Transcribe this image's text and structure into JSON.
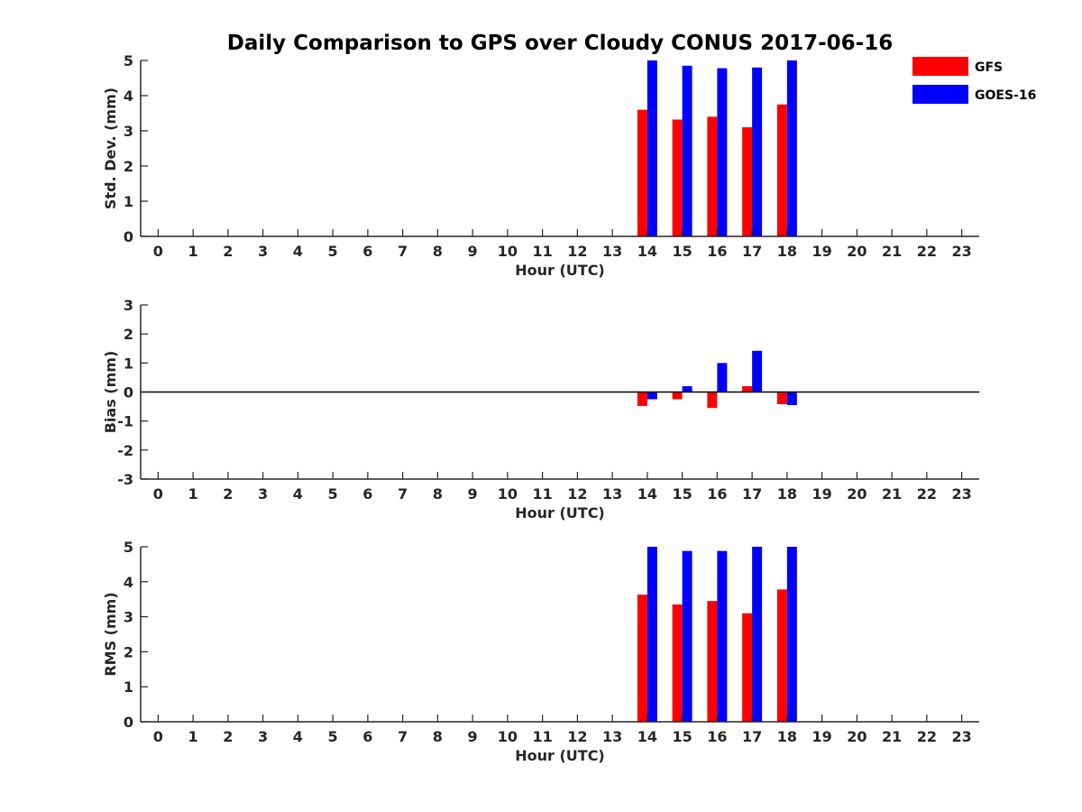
{
  "title": "Daily Comparison to GPS over Cloudy CONUS 2017-06-16",
  "colors": {
    "GFS": "#ff0000",
    "GOES-16": "#0000ff"
  },
  "legend": {
    "placement": "top-right",
    "entries": [
      "GFS",
      "GOES-16"
    ]
  },
  "chart_data": [
    {
      "type": "bar",
      "x": [
        14,
        15,
        16,
        17,
        18
      ],
      "xlabel": "Hour (UTC)",
      "ylabel": "Std. Dev. (mm)",
      "xlim": [
        -0.5,
        23.5
      ],
      "ylim": [
        0,
        5
      ],
      "xticks": [
        "0",
        "1",
        "2",
        "3",
        "4",
        "5",
        "6",
        "7",
        "8",
        "9",
        "10",
        "11",
        "12",
        "13",
        "14",
        "15",
        "16",
        "17",
        "18",
        "19",
        "20",
        "21",
        "22",
        "23"
      ],
      "yticks": [
        "0",
        "1",
        "2",
        "3",
        "4",
        "5"
      ],
      "series": [
        {
          "name": "GFS",
          "values": [
            3.6,
            3.32,
            3.4,
            3.1,
            3.75
          ]
        },
        {
          "name": "GOES-16",
          "values": [
            5.0,
            4.85,
            4.78,
            4.8,
            5.0
          ]
        }
      ]
    },
    {
      "type": "bar",
      "x": [
        14,
        15,
        16,
        17,
        18
      ],
      "xlabel": "Hour (UTC)",
      "ylabel": "Bias (mm)",
      "xlim": [
        -0.5,
        23.5
      ],
      "ylim": [
        -3,
        3
      ],
      "xticks": [
        "0",
        "1",
        "2",
        "3",
        "4",
        "5",
        "6",
        "7",
        "8",
        "9",
        "10",
        "11",
        "12",
        "13",
        "14",
        "15",
        "16",
        "17",
        "18",
        "19",
        "20",
        "21",
        "22",
        "23"
      ],
      "yticks": [
        "-3",
        "-2",
        "-1",
        "0",
        "1",
        "2",
        "3"
      ],
      "series": [
        {
          "name": "GFS",
          "values": [
            -0.48,
            -0.25,
            -0.55,
            0.2,
            -0.42
          ]
        },
        {
          "name": "GOES-16",
          "values": [
            -0.25,
            0.2,
            1.0,
            1.42,
            -0.45
          ]
        }
      ]
    },
    {
      "type": "bar",
      "x": [
        14,
        15,
        16,
        17,
        18
      ],
      "xlabel": "Hour (UTC)",
      "ylabel": "RMS (mm)",
      "xlim": [
        -0.5,
        23.5
      ],
      "ylim": [
        0,
        5
      ],
      "xticks": [
        "0",
        "1",
        "2",
        "3",
        "4",
        "5",
        "6",
        "7",
        "8",
        "9",
        "10",
        "11",
        "12",
        "13",
        "14",
        "15",
        "16",
        "17",
        "18",
        "19",
        "20",
        "21",
        "22",
        "23"
      ],
      "yticks": [
        "0",
        "1",
        "2",
        "3",
        "4",
        "5"
      ],
      "series": [
        {
          "name": "GFS",
          "values": [
            3.63,
            3.35,
            3.45,
            3.1,
            3.78
          ]
        },
        {
          "name": "GOES-16",
          "values": [
            5.0,
            4.88,
            4.88,
            5.0,
            5.0
          ]
        }
      ]
    }
  ]
}
